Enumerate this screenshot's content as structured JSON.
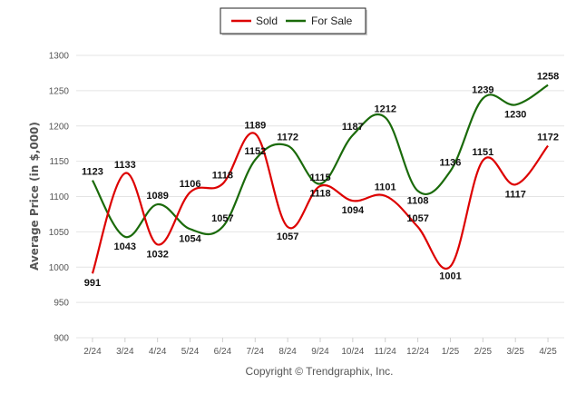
{
  "chart_data": {
    "type": "line",
    "ylabel": "Average Price (in $,000)",
    "xlabel": "",
    "ylim": [
      900,
      1300
    ],
    "yticks": [
      900,
      950,
      1000,
      1050,
      1100,
      1150,
      1200,
      1250,
      1300
    ],
    "categories": [
      "2/24",
      "3/24",
      "4/24",
      "5/24",
      "6/24",
      "7/24",
      "8/24",
      "9/24",
      "10/24",
      "11/24",
      "12/24",
      "1/25",
      "2/25",
      "3/25",
      "4/25"
    ],
    "series": [
      {
        "name": "Sold",
        "color": "#dd0000",
        "values": [
          991,
          1133,
          1032,
          1106,
          1118,
          1189,
          1057,
          1115,
          1094,
          1101,
          1057,
          1001,
          1151,
          1117,
          1172
        ]
      },
      {
        "name": "For Sale",
        "color": "#1a6a0a",
        "values": [
          1123,
          1043,
          1089,
          1054,
          1057,
          1152,
          1172,
          1118,
          1187,
          1212,
          1108,
          1136,
          1239,
          1230,
          1258
        ]
      }
    ],
    "legend_position": "top-center",
    "grid": true
  },
  "credit": "Copyright © Trendgraphix, Inc."
}
